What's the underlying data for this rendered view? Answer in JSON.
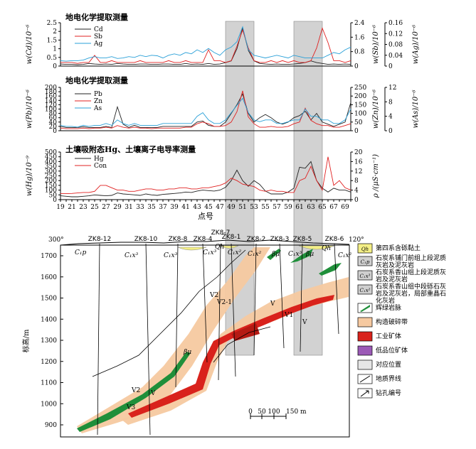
{
  "chart_data": [
    {
      "type": "line",
      "title": "地电化学提取测量",
      "ylabel_left": "w(Cd)/10⁻⁶",
      "ylabel_right1": "w(Sb)/10⁻⁶",
      "ylabel_right2": "w(Ag)/10⁻⁶",
      "x": [
        19,
        20,
        21,
        22,
        23,
        24,
        25,
        26,
        27,
        28,
        29,
        30,
        31,
        32,
        33,
        34,
        35,
        36,
        37,
        38,
        39,
        40,
        41,
        42,
        43,
        44,
        45,
        46,
        47,
        48,
        49,
        50,
        51,
        52,
        53,
        54,
        55,
        56,
        57,
        58,
        59,
        60,
        61,
        62,
        63,
        64,
        65,
        66,
        67,
        68,
        69,
        70
      ],
      "ylim_left": [
        0,
        2.5
      ],
      "yticks_left": [
        "0",
        "0.5",
        "1",
        "1.5",
        "2",
        "2.5"
      ],
      "ylim_right1": [
        0,
        2.4
      ],
      "yticks_right1": [
        "0",
        "0.8",
        "1.6",
        "2.4"
      ],
      "ylim_right2": [
        0,
        0.16
      ],
      "yticks_right2": [
        "0",
        "0.04",
        "0.08",
        "0.12",
        "0.16"
      ],
      "series": [
        {
          "name": "Cd",
          "color": "#222222",
          "axis": "left",
          "values": [
            0.12,
            0.1,
            0.1,
            0.08,
            0.1,
            0.15,
            0.12,
            0.1,
            0.12,
            0.1,
            0.15,
            0.12,
            0.1,
            0.1,
            0.12,
            0.12,
            0.1,
            0.1,
            0.12,
            0.12,
            0.1,
            0.1,
            0.15,
            0.1,
            0.12,
            0.1,
            0.15,
            0.1,
            0.12,
            0.2,
            0.3,
            1.0,
            2.2,
            0.9,
            0.3,
            0.15,
            0.12,
            0.1,
            0.12,
            0.1,
            0.1,
            0.12,
            0.15,
            0.2,
            0.3,
            0.2,
            0.15,
            0.1,
            0.12,
            0.1,
            0.12,
            0.1
          ]
        },
        {
          "name": "Sb",
          "color": "#e02020",
          "axis": "right1",
          "values": [
            0.2,
            0.2,
            0.2,
            0.15,
            0.2,
            0.2,
            0.6,
            0.2,
            0.2,
            0.3,
            0.2,
            0.2,
            0.2,
            0.2,
            0.3,
            0.2,
            0.2,
            0.2,
            0.2,
            0.3,
            0.2,
            0.2,
            0.3,
            0.2,
            0.2,
            0.2,
            0.9,
            0.3,
            0.3,
            0.2,
            0.3,
            1.1,
            2.0,
            1.0,
            0.3,
            0.2,
            0.2,
            0.3,
            0.2,
            0.3,
            0.2,
            0.3,
            0.2,
            0.2,
            0.3,
            1.0,
            2.1,
            1.3,
            0.3,
            0.3,
            0.2,
            0.3
          ]
        },
        {
          "name": "Ag",
          "color": "#2aa0d8",
          "axis": "right2",
          "values": [
            0.02,
            0.018,
            0.02,
            0.02,
            0.022,
            0.03,
            0.035,
            0.03,
            0.03,
            0.035,
            0.028,
            0.03,
            0.035,
            0.032,
            0.04,
            0.035,
            0.04,
            0.038,
            0.03,
            0.04,
            0.045,
            0.04,
            0.05,
            0.045,
            0.06,
            0.05,
            0.065,
            0.05,
            0.04,
            0.06,
            0.07,
            0.09,
            0.145,
            0.06,
            0.04,
            0.035,
            0.03,
            0.035,
            0.04,
            0.035,
            0.03,
            0.04,
            0.035,
            0.03,
            0.03,
            0.03,
            0.03,
            0.04,
            0.05,
            0.045,
            0.06,
            0.07
          ]
        }
      ]
    },
    {
      "type": "line",
      "title": "地电化学提取测量",
      "ylabel_left": "w(Pb)/10⁻⁶",
      "ylabel_right1": "w(Zn)/10⁻⁶",
      "ylabel_right2": "w(As)/10⁻⁶",
      "x": [
        19,
        20,
        21,
        22,
        23,
        24,
        25,
        26,
        27,
        28,
        29,
        30,
        31,
        32,
        33,
        34,
        35,
        36,
        37,
        38,
        39,
        40,
        41,
        42,
        43,
        44,
        45,
        46,
        47,
        48,
        49,
        50,
        51,
        52,
        53,
        54,
        55,
        56,
        57,
        58,
        59,
        60,
        61,
        62,
        63,
        64,
        65,
        66,
        67,
        68,
        69,
        70
      ],
      "ylim_left": [
        0,
        200
      ],
      "yticks_left": [
        "0",
        "20",
        "40",
        "60",
        "80",
        "100",
        "120",
        "140",
        "160",
        "180",
        "200"
      ],
      "ylim_right1": [
        0,
        250
      ],
      "yticks_right1": [
        "0",
        "50",
        "100",
        "150",
        "200",
        "250"
      ],
      "ylim_right2": [
        0,
        12
      ],
      "yticks_right2": [
        "0",
        "4",
        "8",
        "12"
      ],
      "series": [
        {
          "name": "Pb",
          "color": "#222222",
          "axis": "left",
          "values": [
            20,
            15,
            15,
            15,
            18,
            15,
            15,
            15,
            20,
            15,
            110,
            30,
            15,
            25,
            15,
            15,
            15,
            15,
            20,
            20,
            20,
            20,
            20,
            20,
            40,
            45,
            25,
            20,
            20,
            40,
            80,
            120,
            170,
            80,
            40,
            60,
            75,
            60,
            40,
            30,
            40,
            60,
            70,
            90,
            50,
            80,
            40,
            30,
            20,
            30,
            40,
            130
          ]
        },
        {
          "name": "Zn",
          "color": "#e02020",
          "axis": "right1",
          "values": [
            15,
            12,
            12,
            12,
            15,
            12,
            15,
            15,
            20,
            15,
            30,
            20,
            15,
            20,
            15,
            15,
            12,
            15,
            15,
            15,
            15,
            15,
            20,
            20,
            40,
            50,
            40,
            25,
            25,
            30,
            50,
            110,
            230,
            80,
            40,
            20,
            20,
            25,
            20,
            20,
            25,
            40,
            50,
            130,
            60,
            40,
            30,
            30,
            20,
            20,
            30,
            40
          ]
        },
        {
          "name": "As",
          "color": "#2aa0d8",
          "axis": "right2",
          "values": [
            1.5,
            1.2,
            1.2,
            1.0,
            1.5,
            1.2,
            1.5,
            1.5,
            2,
            1.5,
            3,
            2,
            1.5,
            2,
            1.5,
            1.5,
            1.5,
            1.5,
            2,
            2,
            2,
            2,
            2,
            2,
            4,
            5,
            3,
            2,
            2,
            3,
            5,
            7,
            9,
            5,
            3,
            2.5,
            3,
            3,
            2,
            2,
            2.5,
            3,
            3,
            6,
            4,
            4,
            3,
            3,
            2,
            2,
            3,
            6
          ]
        }
      ]
    },
    {
      "type": "line",
      "title": "土壤吸附态Hg、土壤离子电导率测量",
      "ylabel_left": "w(Hg)/10⁻⁹",
      "ylabel_right1": "ρ /(μS·cm⁻¹)",
      "x": [
        19,
        20,
        21,
        22,
        23,
        24,
        25,
        26,
        27,
        28,
        29,
        30,
        31,
        32,
        33,
        34,
        35,
        36,
        37,
        38,
        39,
        40,
        41,
        42,
        43,
        44,
        45,
        46,
        47,
        48,
        49,
        50,
        51,
        52,
        53,
        54,
        55,
        56,
        57,
        58,
        59,
        60,
        61,
        62,
        63,
        64,
        65,
        66,
        67,
        68,
        69,
        70
      ],
      "xlabel": "点号",
      "xticks": [
        "19",
        "21",
        "23",
        "25",
        "27",
        "29",
        "31",
        "33",
        "35",
        "37",
        "39",
        "41",
        "43",
        "45",
        "47",
        "49",
        "51",
        "53",
        "55",
        "57",
        "59",
        "61",
        "63",
        "65",
        "67",
        "69"
      ],
      "ylim_left": [
        0,
        500
      ],
      "yticks_left": [
        "0",
        "50",
        "100",
        "150",
        "200",
        "250",
        "300",
        "350",
        "400",
        "450",
        "500"
      ],
      "ylim_right1": [
        0,
        20
      ],
      "yticks_right1": [
        "0",
        "4",
        "8",
        "12",
        "16",
        "20"
      ],
      "series": [
        {
          "name": "Hg",
          "color": "#222222",
          "axis": "left",
          "values": [
            40,
            35,
            30,
            30,
            35,
            40,
            50,
            45,
            40,
            45,
            70,
            60,
            55,
            50,
            45,
            60,
            50,
            45,
            55,
            60,
            65,
            70,
            80,
            75,
            90,
            100,
            95,
            90,
            100,
            130,
            200,
            310,
            200,
            140,
            200,
            160,
            90,
            60,
            60,
            60,
            80,
            120,
            340,
            330,
            400,
            200,
            120,
            80,
            120,
            100,
            100,
            80
          ]
        },
        {
          "name": "Con",
          "color": "#e02020",
          "axis": "right1",
          "values": [
            2.5,
            2.5,
            2.6,
            2.8,
            3,
            3,
            3.5,
            6,
            6,
            5,
            4,
            4,
            3.5,
            3.5,
            4,
            4.5,
            4.5,
            4,
            4,
            4.5,
            4.5,
            5,
            5,
            4.5,
            4.5,
            5,
            5,
            5.5,
            6,
            7,
            9,
            8,
            6.5,
            6,
            5.5,
            4,
            3.5,
            4,
            3.5,
            3.5,
            3,
            3,
            8,
            9,
            14,
            8,
            4,
            18,
            6,
            8,
            5,
            4
          ]
        }
      ]
    }
  ],
  "highlight_points": [
    [
      48,
      53
    ],
    [
      60,
      65
    ]
  ],
  "section": {
    "azimuth_left": "300°",
    "azimuth_right": "120°",
    "ylabel": "标高/m",
    "yticks": [
      "900",
      "1000",
      "1100",
      "1200",
      "1300",
      "1400",
      "1500",
      "1600",
      "1700"
    ],
    "drill_labels": [
      "ZK8-12",
      "ZK8-10",
      "ZK8-8",
      "ZK8-4",
      "ZK8-7",
      "ZK8-1",
      "ZK8-2",
      "ZK8-3",
      "ZK8-5",
      "ZK8-6"
    ],
    "unit_labels": [
      "C₁p",
      "C₁x³",
      "C₁x³",
      "C₁x³",
      "Qh",
      "C₁x²",
      "C₁x²",
      "C₁x³",
      "Qh",
      "C₁x²"
    ],
    "dike_labels": [
      "βμ",
      "βμ",
      "βμ"
    ],
    "orebody_labels": [
      "V2",
      "V2-1",
      "V",
      "V1",
      "V",
      "V2",
      "V",
      "V3"
    ],
    "scale_ticks": [
      "0",
      "50",
      "100",
      "150 m"
    ]
  },
  "legend": {
    "items": [
      {
        "key": "Qh",
        "label": "第四系含砾黏土"
      },
      {
        "key": "C₁p",
        "label": "石炭系铺门前组上段泥质灰岩及泥灰岩"
      },
      {
        "key": "C₁x³",
        "label": "石炭系香山组上段泥质灰岩及泥灰岩"
      },
      {
        "key": "C₁x²",
        "label": "石炭系香山组中段砾石灰岩及泥灰岩，局部重晶石化灰岩"
      },
      {
        "key": "",
        "label": "辉绿岩脉"
      },
      {
        "key": "",
        "label": "构造破碎带"
      },
      {
        "key": "",
        "label": "工业矿体"
      },
      {
        "key": "",
        "label": "低品位矿体"
      },
      {
        "key": "",
        "label": "对应位置"
      },
      {
        "key": "",
        "label": "地质界线"
      },
      {
        "key": "",
        "label": "钻孔编号"
      }
    ]
  },
  "colors": {
    "cd": "#222222",
    "sb": "#e02020",
    "ag": "#2aa0d8",
    "highlight": "#d2d2d2",
    "qh": "#f4ef86",
    "breccia": "#f6c9a0",
    "ore": "#d9221c",
    "lowgrade": "#9b59b6",
    "dike": "#1f8f3a"
  }
}
